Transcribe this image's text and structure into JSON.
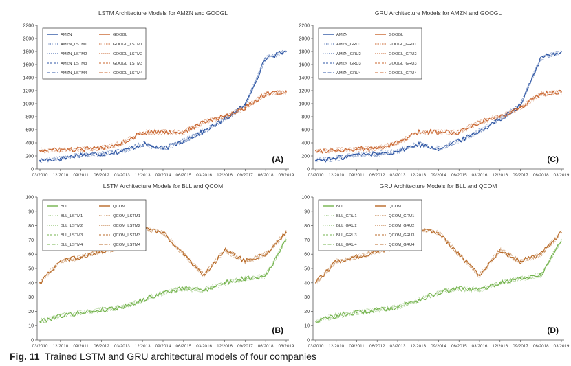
{
  "figure": {
    "caption_label": "Fig. 11",
    "caption_text": "Trained LSTM and GRU architectural models of four companies"
  },
  "x_tick_labels": [
    "03/2010",
    "12/2010",
    "09/2011",
    "06/2012",
    "03/2013",
    "12/2013",
    "09/2014",
    "06/2015",
    "03/2016",
    "12/2016",
    "09/2017",
    "06/2018",
    "03/2019"
  ],
  "colors": {
    "blue": "#2e56a4",
    "orange": "#c9652e",
    "green": "#73b34c",
    "brown": "#b86a28"
  },
  "chart_data": [
    {
      "type": "line",
      "title": "LSTM Architecture Models for AMZN and GOOGL",
      "panel_label": "(A)",
      "ylim": [
        0,
        2200
      ],
      "y_ticks": [
        0,
        200,
        400,
        600,
        800,
        1000,
        1200,
        1400,
        1600,
        1800,
        2000,
        2200
      ],
      "x": [
        "03/2010",
        "12/2010",
        "09/2011",
        "06/2012",
        "03/2013",
        "12/2013",
        "09/2014",
        "06/2015",
        "03/2016",
        "12/2016",
        "09/2017",
        "06/2018",
        "03/2019"
      ],
      "legend": [
        "AMZN",
        "GOOGL",
        "AMZN_LSTM1",
        "GOOGL_LSTM1",
        "AMZN_LSTM2",
        "GOOGL_LSTM2",
        "AMZN_LSTM3",
        "GOOGL_LSTM3",
        "AMZN_LSTM4",
        "GOOGL_LSTM4"
      ],
      "series": [
        {
          "name": "AMZN",
          "color": "blue",
          "values": [
            130,
            160,
            220,
            230,
            270,
            380,
            310,
            430,
            580,
            760,
            980,
            1700,
            1800
          ]
        },
        {
          "name": "GOOGL",
          "color": "orange",
          "values": [
            280,
            290,
            300,
            320,
            400,
            560,
            570,
            560,
            720,
            800,
            940,
            1150,
            1180
          ]
        }
      ],
      "grid": false,
      "legend_position": "top-left"
    },
    {
      "type": "line",
      "title": "GRU Architecture Models for AMZN and GOOGL",
      "panel_label": "(C)",
      "ylim": [
        0,
        2200
      ],
      "y_ticks": [
        0,
        200,
        400,
        600,
        800,
        1000,
        1200,
        1400,
        1600,
        1800,
        2000,
        2200
      ],
      "x": [
        "03/2010",
        "12/2010",
        "09/2011",
        "06/2012",
        "03/2013",
        "12/2013",
        "09/2014",
        "06/2015",
        "03/2016",
        "12/2016",
        "09/2017",
        "06/2018",
        "03/2019"
      ],
      "legend": [
        "AMZN",
        "GOOGL",
        "AMZN_GRU1",
        "GOOGL_GRU1",
        "AMZN_GRU2",
        "GOOGL_GRU2",
        "AMZN_GRU3",
        "GOOGL_GRU3",
        "AMZN_GRU4",
        "GOOGL_GRU4"
      ],
      "series": [
        {
          "name": "AMZN",
          "color": "blue",
          "values": [
            130,
            160,
            220,
            230,
            270,
            380,
            310,
            430,
            580,
            760,
            980,
            1700,
            1800
          ]
        },
        {
          "name": "GOOGL",
          "color": "orange",
          "values": [
            280,
            290,
            300,
            320,
            400,
            560,
            570,
            560,
            720,
            800,
            940,
            1150,
            1180
          ]
        }
      ],
      "grid": false,
      "legend_position": "top-left"
    },
    {
      "type": "line",
      "title": "LSTM Architecture Models for BLL and QCOM",
      "panel_label": "(B)",
      "ylim": [
        0,
        100
      ],
      "y_ticks": [
        0,
        10,
        20,
        30,
        40,
        50,
        60,
        70,
        80,
        90,
        100
      ],
      "x": [
        "03/2010",
        "12/2010",
        "09/2011",
        "06/2012",
        "03/2013",
        "12/2013",
        "09/2014",
        "06/2015",
        "03/2016",
        "12/2016",
        "09/2017",
        "06/2018",
        "03/2019"
      ],
      "legend": [
        "BLL",
        "QCOM",
        "BLL_LSTM1",
        "QCOM_LSTM1",
        "BLL_LSTM2",
        "QCOM_LSTM2",
        "BLL_LSTM3",
        "QCOM_LSTM3",
        "BLL_LSTM4",
        "QCOM_LSTM4"
      ],
      "series": [
        {
          "name": "BLL",
          "color": "green",
          "values": [
            13,
            17,
            19,
            21,
            23,
            28,
            33,
            36,
            35,
            40,
            43,
            45,
            70
          ]
        },
        {
          "name": "QCOM",
          "color": "brown",
          "values": [
            40,
            55,
            58,
            62,
            65,
            78,
            75,
            60,
            45,
            63,
            55,
            60,
            75
          ]
        }
      ],
      "grid": false,
      "legend_position": "top-left"
    },
    {
      "type": "line",
      "title": "GRU Architecture Models for BLL and QCOM",
      "panel_label": "(D)",
      "ylim": [
        0,
        100
      ],
      "y_ticks": [
        0,
        10,
        20,
        30,
        40,
        50,
        60,
        70,
        80,
        90,
        100
      ],
      "x": [
        "03/2010",
        "12/2010",
        "09/2011",
        "06/2012",
        "03/2013",
        "12/2013",
        "09/2014",
        "06/2015",
        "03/2016",
        "12/2016",
        "09/2017",
        "06/2018",
        "03/2019"
      ],
      "legend": [
        "BLL",
        "QCOM",
        "BLL_GRU1",
        "QCOM_GRU1",
        "BLL_GRU2",
        "QCOM_GRU2",
        "BLL_GRU3",
        "QCOM_GRU3",
        "BLL_GRU4",
        "QCOM_GRU4"
      ],
      "series": [
        {
          "name": "BLL",
          "color": "green",
          "values": [
            13,
            17,
            19,
            21,
            23,
            28,
            33,
            36,
            35,
            40,
            43,
            45,
            70
          ]
        },
        {
          "name": "QCOM",
          "color": "brown",
          "values": [
            40,
            55,
            58,
            62,
            65,
            78,
            75,
            60,
            45,
            63,
            55,
            60,
            75
          ]
        }
      ],
      "grid": false,
      "legend_position": "top-left"
    }
  ]
}
